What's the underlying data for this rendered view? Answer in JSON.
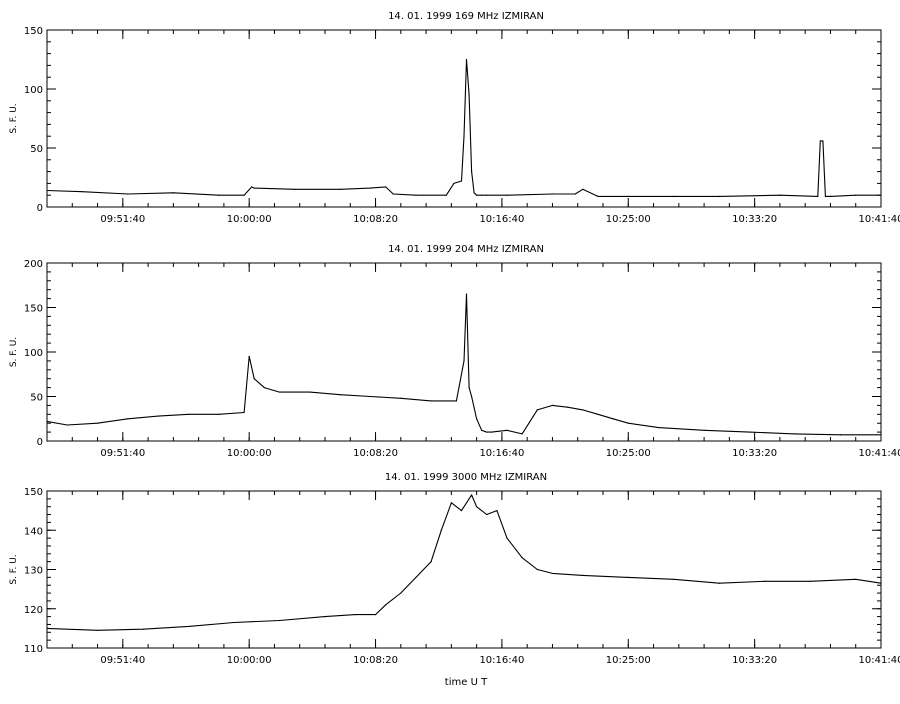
{
  "figure": {
    "xlabel": "time  U T",
    "background": "#ffffff",
    "ink": "#000000"
  },
  "chart_data": [
    {
      "type": "line",
      "title": "14. 01. 1999    169 MHz    IZMIRAN",
      "ylabel": "S. F. U.",
      "xlabel": "",
      "xlim": [
        "09:46:40",
        "10:41:40"
      ],
      "xticks": [
        "09:51:40",
        "10:00:00",
        "10:08:20",
        "10:16:40",
        "10:25:00",
        "10:33:20",
        "10:41:40"
      ],
      "ylim": [
        0,
        150
      ],
      "yticks": [
        0,
        50,
        100,
        150
      ],
      "grid": false,
      "series": [
        {
          "x": [
            "09:46:40",
            "09:49:00",
            "09:52:00",
            "09:55:00",
            "09:58:00",
            "09:59:40",
            "10:00:10",
            "10:00:20",
            "10:03:00",
            "10:06:00",
            "10:08:00",
            "10:09:00",
            "10:09:30",
            "10:11:00",
            "10:13:00",
            "10:13:30",
            "10:14:00",
            "10:14:10",
            "10:14:20",
            "10:14:30",
            "10:14:40",
            "10:14:50",
            "10:15:00",
            "10:15:20",
            "10:15:40",
            "10:17:00",
            "10:20:00",
            "10:21:30",
            "10:22:00",
            "10:23:00",
            "10:25:00",
            "10:28:00",
            "10:31:00",
            "10:35:00",
            "10:37:30",
            "10:37:40",
            "10:37:50",
            "10:38:00",
            "10:38:10",
            "10:38:20",
            "10:40:00",
            "10:41:40"
          ],
          "y": [
            14,
            13,
            11,
            12,
            10,
            10,
            17,
            16,
            15,
            15,
            16,
            17,
            11,
            10,
            10,
            20,
            22,
            60,
            125,
            95,
            30,
            12,
            10,
            10,
            10,
            10,
            11,
            11,
            15,
            9,
            9,
            9,
            9,
            10,
            9,
            56,
            56,
            9,
            9,
            9,
            10,
            10
          ]
        }
      ]
    },
    {
      "type": "line",
      "title": "14. 01. 1999    204 MHz    IZMIRAN",
      "ylabel": "S. F. U.",
      "xlabel": "",
      "xlim": [
        "09:46:40",
        "10:41:40"
      ],
      "xticks": [
        "09:51:40",
        "10:00:00",
        "10:08:20",
        "10:16:40",
        "10:25:00",
        "10:33:20",
        "10:41:40"
      ],
      "ylim": [
        0,
        200
      ],
      "yticks": [
        0,
        50,
        100,
        150,
        200
      ],
      "grid": false,
      "series": [
        {
          "x": [
            "09:46:40",
            "09:48:00",
            "09:50:00",
            "09:52:00",
            "09:54:00",
            "09:56:00",
            "09:58:00",
            "09:59:40",
            "10:00:00",
            "10:00:20",
            "10:01:00",
            "10:02:00",
            "10:04:00",
            "10:06:00",
            "10:08:00",
            "10:10:00",
            "10:12:00",
            "10:13:40",
            "10:14:10",
            "10:14:20",
            "10:14:30",
            "10:14:40",
            "10:15:00",
            "10:15:20",
            "10:15:40",
            "10:16:00",
            "10:17:00",
            "10:18:00",
            "10:19:00",
            "10:20:00",
            "10:21:00",
            "10:22:00",
            "10:23:00",
            "10:24:00",
            "10:25:00",
            "10:27:00",
            "10:30:00",
            "10:33:00",
            "10:36:00",
            "10:39:00",
            "10:41:40"
          ],
          "y": [
            22,
            18,
            20,
            25,
            28,
            30,
            30,
            32,
            95,
            70,
            60,
            55,
            55,
            52,
            50,
            48,
            45,
            45,
            90,
            165,
            60,
            50,
            25,
            12,
            10,
            10,
            12,
            8,
            35,
            40,
            38,
            35,
            30,
            25,
            20,
            15,
            12,
            10,
            8,
            7,
            7
          ]
        }
      ]
    },
    {
      "type": "line",
      "title": "14. 01. 1999    3000 MHz    IZMIRAN",
      "ylabel": "S. F. U.",
      "xlabel": "time  U T",
      "xlim": [
        "09:46:40",
        "10:41:40"
      ],
      "xticks": [
        "09:51:40",
        "10:00:00",
        "10:08:20",
        "10:16:40",
        "10:25:00",
        "10:33:20",
        "10:41:40"
      ],
      "ylim": [
        110,
        150
      ],
      "yticks": [
        110,
        120,
        130,
        140,
        150
      ],
      "grid": false,
      "series": [
        {
          "x": [
            "09:46:40",
            "09:50:00",
            "09:53:00",
            "09:56:00",
            "09:59:00",
            "10:02:00",
            "10:05:00",
            "10:07:00",
            "10:08:20",
            "10:09:00",
            "10:10:00",
            "10:11:00",
            "10:12:00",
            "10:12:40",
            "10:13:20",
            "10:14:00",
            "10:14:40",
            "10:15:00",
            "10:15:40",
            "10:16:20",
            "10:17:00",
            "10:18:00",
            "10:19:00",
            "10:20:00",
            "10:22:00",
            "10:25:00",
            "10:28:00",
            "10:31:00",
            "10:34:00",
            "10:37:00",
            "10:40:00",
            "10:41:40"
          ],
          "y": [
            115,
            114.5,
            114.8,
            115.5,
            116.5,
            117,
            118,
            118.5,
            118.5,
            121,
            124,
            128,
            132,
            140,
            147,
            145,
            149,
            146,
            144,
            145,
            138,
            133,
            130,
            129,
            128.5,
            128,
            127.5,
            126.5,
            127,
            127,
            127.5,
            126.5
          ]
        }
      ]
    }
  ]
}
